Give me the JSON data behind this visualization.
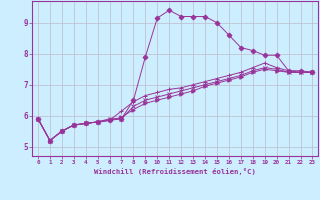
{
  "xlabel": "Windchill (Refroidissement éolien,°C)",
  "bg_color": "#cceeff",
  "line_color": "#993399",
  "grid_color": "#bbbbcc",
  "xlim": [
    -0.5,
    23.5
  ],
  "ylim": [
    4.7,
    9.7
  ],
  "xticks": [
    0,
    1,
    2,
    3,
    4,
    5,
    6,
    7,
    8,
    9,
    10,
    11,
    12,
    13,
    14,
    15,
    16,
    17,
    18,
    19,
    20,
    21,
    22,
    23
  ],
  "yticks": [
    5,
    6,
    7,
    8,
    9
  ],
  "lines": [
    {
      "y": [
        5.9,
        5.2,
        5.5,
        5.7,
        5.75,
        5.8,
        5.85,
        5.9,
        6.5,
        7.9,
        9.15,
        9.4,
        9.2,
        9.2,
        9.2,
        9.0,
        8.6,
        8.2,
        8.1,
        7.95,
        7.95,
        7.45,
        7.45,
        7.4
      ],
      "marker": "D",
      "ms": 2.5
    },
    {
      "y": [
        5.9,
        5.2,
        5.5,
        5.7,
        5.75,
        5.8,
        5.85,
        6.15,
        6.45,
        6.65,
        6.75,
        6.85,
        6.9,
        7.0,
        7.1,
        7.2,
        7.3,
        7.4,
        7.55,
        7.7,
        7.55,
        7.45,
        7.4,
        7.4
      ],
      "marker": "+",
      "ms": 3.5
    },
    {
      "y": [
        5.9,
        5.2,
        5.5,
        5.7,
        5.75,
        5.8,
        5.9,
        5.9,
        6.3,
        6.5,
        6.6,
        6.7,
        6.8,
        6.9,
        7.0,
        7.1,
        7.2,
        7.3,
        7.45,
        7.55,
        7.5,
        7.4,
        7.4,
        7.4
      ],
      "marker": "x",
      "ms": 3
    },
    {
      "y": [
        5.9,
        5.2,
        5.5,
        5.7,
        5.75,
        5.8,
        5.85,
        5.95,
        6.2,
        6.4,
        6.5,
        6.6,
        6.7,
        6.8,
        6.95,
        7.05,
        7.15,
        7.25,
        7.4,
        7.5,
        7.45,
        7.4,
        7.4,
        7.4
      ],
      "marker": ">",
      "ms": 2.5
    }
  ]
}
